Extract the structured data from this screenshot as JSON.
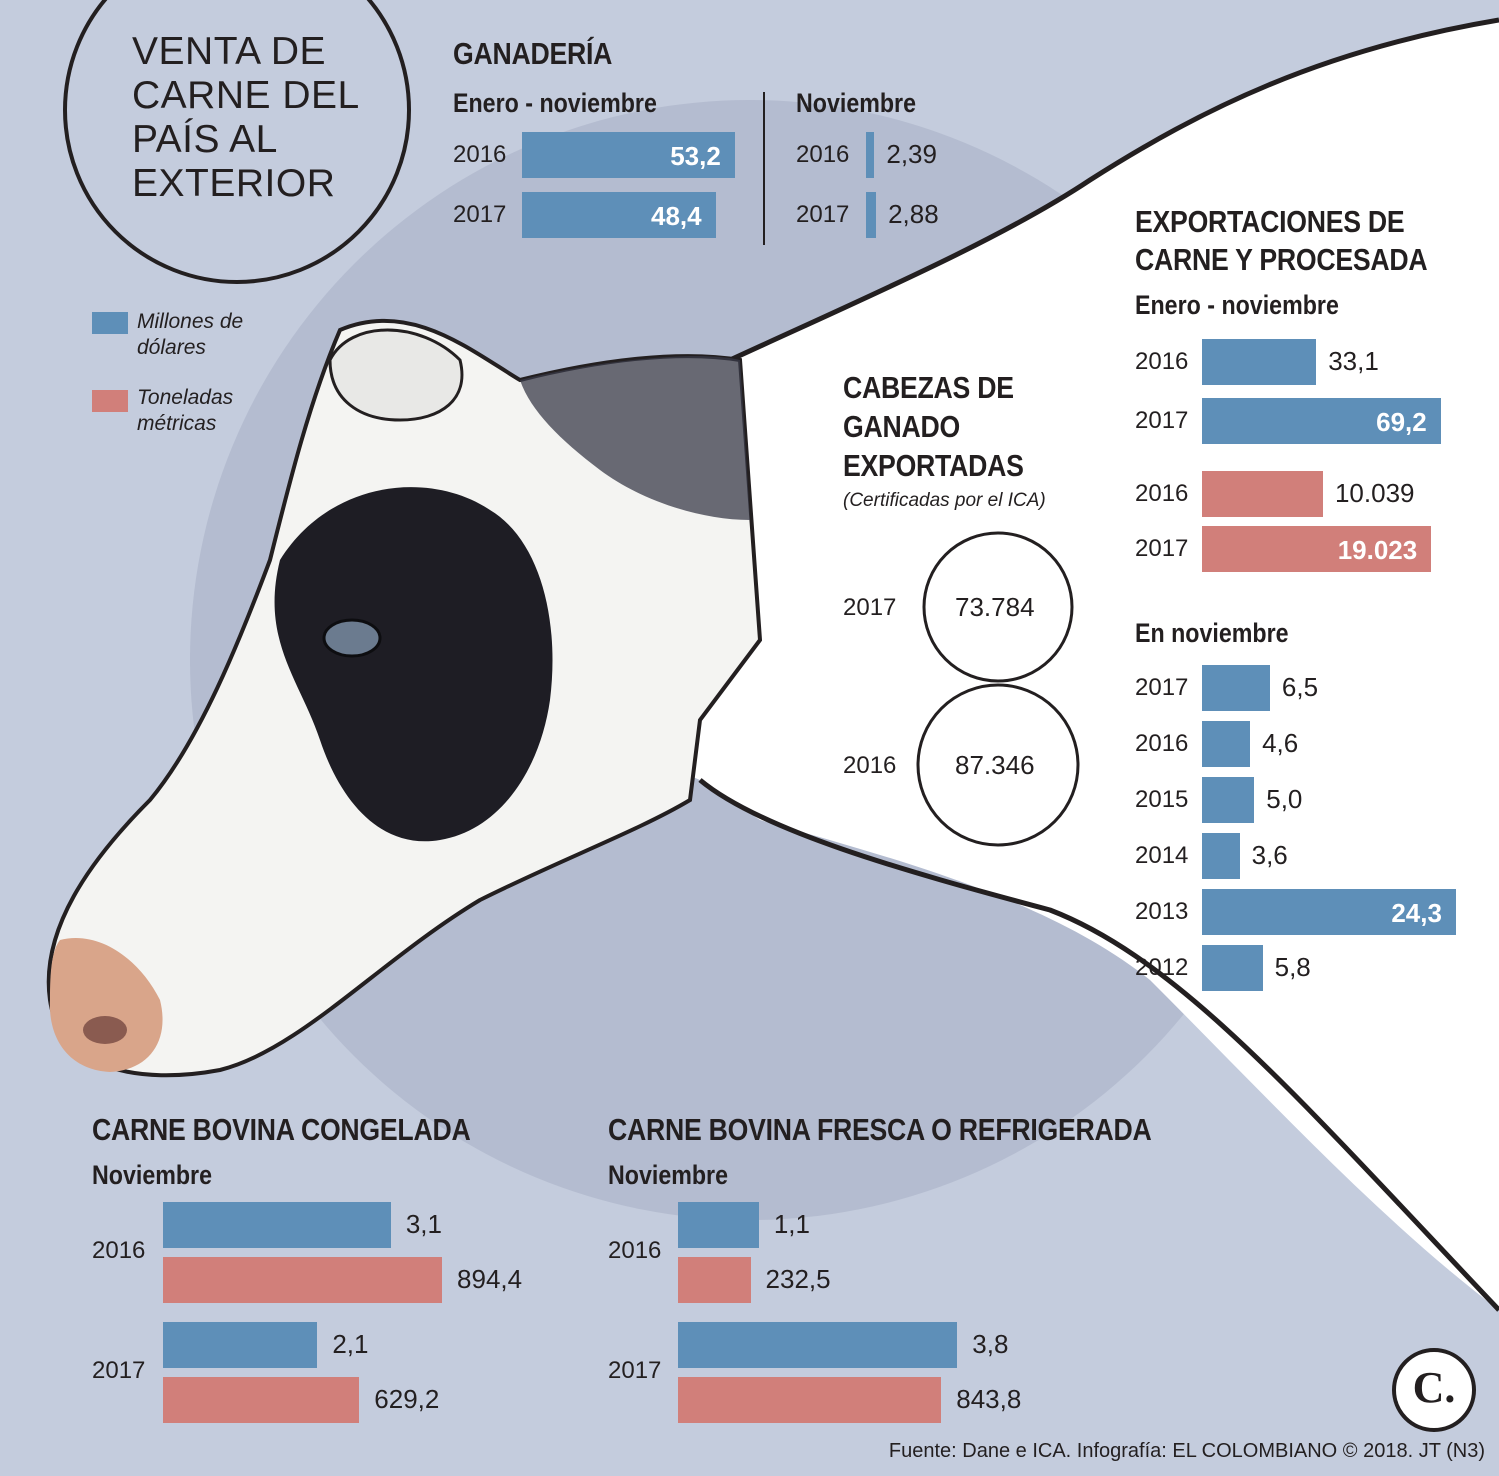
{
  "colors": {
    "background": "#c4ccdd",
    "usd_bar": "#5e8fb8",
    "tons_bar": "#d17f7a",
    "watermark": "#a8afc4"
  },
  "title": "VENTA DE CARNE DEL PAÍS AL EXTERIOR",
  "legend": {
    "usd": "Millones de dólares",
    "tons": "Toneladas métricas"
  },
  "ganaderia": {
    "heading": "GANADERÍA",
    "left_sub": "Enero - noviembre",
    "right_sub": "Noviembre"
  },
  "cabezas": {
    "heading_lines": [
      "CABEZAS DE",
      "GANADO",
      "EXPORTADAS"
    ],
    "note": "(Certificadas por el ICA)"
  },
  "exportaciones": {
    "heading_lines": [
      "EXPORTACIONES DE",
      "CARNE Y PROCESADA"
    ],
    "sub": "Enero - noviembre",
    "sub2": "En noviembre"
  },
  "congelada": {
    "heading": "CARNE BOVINA CONGELADA",
    "sub": "Noviembre"
  },
  "fresca": {
    "heading": "CARNE BOVINA FRESCA O REFRIGERADA",
    "sub": "Noviembre"
  },
  "source": "Fuente: Dane e ICA. Infografía: EL COLOMBIANO © 2018. JT (N3)",
  "logo_letter": "C.",
  "chart_data": [
    {
      "type": "bar",
      "title": "GANADERÍA",
      "subtitle": "Enero - noviembre",
      "unit": "Millones de dólares",
      "categories": [
        "2016",
        "2017"
      ],
      "values": [
        53.2,
        48.4
      ],
      "labels": [
        "53,2",
        "48,4"
      ]
    },
    {
      "type": "bar",
      "title": "GANADERÍA",
      "subtitle": "Noviembre",
      "unit": "Millones de dólares",
      "categories": [
        "2016",
        "2017"
      ],
      "values": [
        2.39,
        2.88
      ],
      "labels": [
        "2,39",
        "2,88"
      ]
    },
    {
      "type": "table",
      "title": "CABEZAS DE GANADO EXPORTADAS",
      "subtitle": "(Certificadas por el ICA)",
      "categories": [
        "2017",
        "2016"
      ],
      "values": [
        73784,
        87346
      ],
      "labels": [
        "73.784",
        "87.346"
      ]
    },
    {
      "type": "bar",
      "title": "EXPORTACIONES DE CARNE Y PROCESADA",
      "subtitle": "Enero - noviembre",
      "unit": "Millones de dólares",
      "categories": [
        "2016",
        "2017"
      ],
      "values": [
        33.1,
        69.2
      ],
      "labels": [
        "33,1",
        "69,2"
      ]
    },
    {
      "type": "bar",
      "title": "EXPORTACIONES DE CARNE Y PROCESADA",
      "subtitle": "Enero - noviembre",
      "unit": "Toneladas métricas",
      "categories": [
        "2016",
        "2017"
      ],
      "values": [
        10039,
        19023
      ],
      "labels": [
        "10.039",
        "19.023"
      ]
    },
    {
      "type": "bar",
      "title": "EXPORTACIONES DE CARNE Y PROCESADA",
      "subtitle": "En noviembre",
      "unit": "Millones de dólares",
      "categories": [
        "2017",
        "2016",
        "2015",
        "2014",
        "2013",
        "2012"
      ],
      "values": [
        6.5,
        4.6,
        5.0,
        3.6,
        24.3,
        5.8
      ],
      "labels": [
        "6,5",
        "4,6",
        "5,0",
        "3,6",
        "24,3",
        "5,8"
      ]
    },
    {
      "type": "bar",
      "title": "CARNE BOVINA CONGELADA",
      "subtitle": "Noviembre",
      "categories": [
        "2016",
        "2017"
      ],
      "series": [
        {
          "name": "Millones de dólares",
          "values": [
            3.1,
            2.1
          ],
          "labels": [
            "3,1",
            "2,1"
          ]
        },
        {
          "name": "Toneladas métricas",
          "values": [
            894.4,
            629.2
          ],
          "labels": [
            "894,4",
            "629,2"
          ]
        }
      ]
    },
    {
      "type": "bar",
      "title": "CARNE BOVINA FRESCA O REFRIGERADA",
      "subtitle": "Noviembre",
      "categories": [
        "2016",
        "2017"
      ],
      "series": [
        {
          "name": "Millones de dólares",
          "values": [
            1.1,
            3.8
          ],
          "labels": [
            "1,1",
            "3,8"
          ]
        },
        {
          "name": "Toneladas métricas",
          "values": [
            232.5,
            843.8
          ],
          "labels": [
            "232,5",
            "843,8"
          ]
        }
      ]
    }
  ]
}
